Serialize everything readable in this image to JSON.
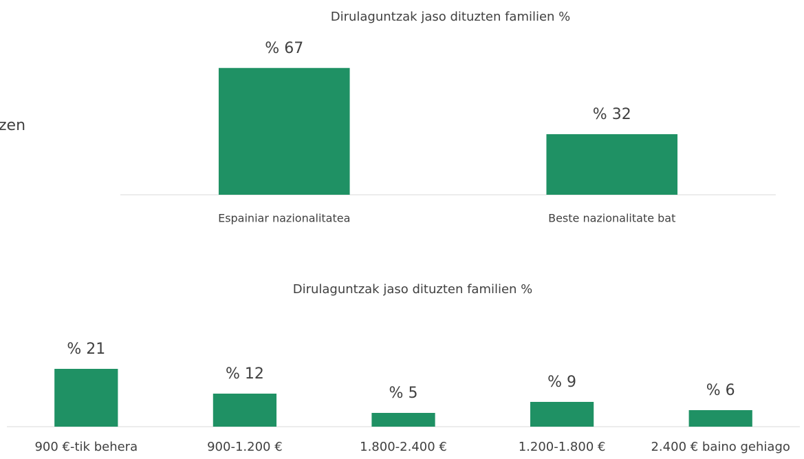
{
  "side_text": "zen",
  "chart_data": [
    {
      "type": "bar",
      "title": "Dirulaguntzak jaso dituzten familien %",
      "categories": [
        "Espainiar nazionalitatea",
        "Beste nazionalitate bat"
      ],
      "values": [
        67,
        32
      ],
      "value_labels": [
        "% 67",
        "% 32"
      ],
      "color": "#1f9164",
      "ylim": [
        0,
        80
      ]
    },
    {
      "type": "bar",
      "title": "Dirulaguntzak jaso dituzten familien %",
      "categories": [
        "900 €-tik behera",
        "900-1.200 €",
        "1.800-2.400 €",
        "1.200-1.800 €",
        "2.400 € baino gehiago"
      ],
      "values": [
        21,
        12,
        5,
        9,
        6
      ],
      "value_labels": [
        "% 21",
        "% 12",
        "% 5",
        "% 9",
        "% 6"
      ],
      "color": "#1f9164",
      "ylim": [
        0,
        25
      ]
    }
  ]
}
